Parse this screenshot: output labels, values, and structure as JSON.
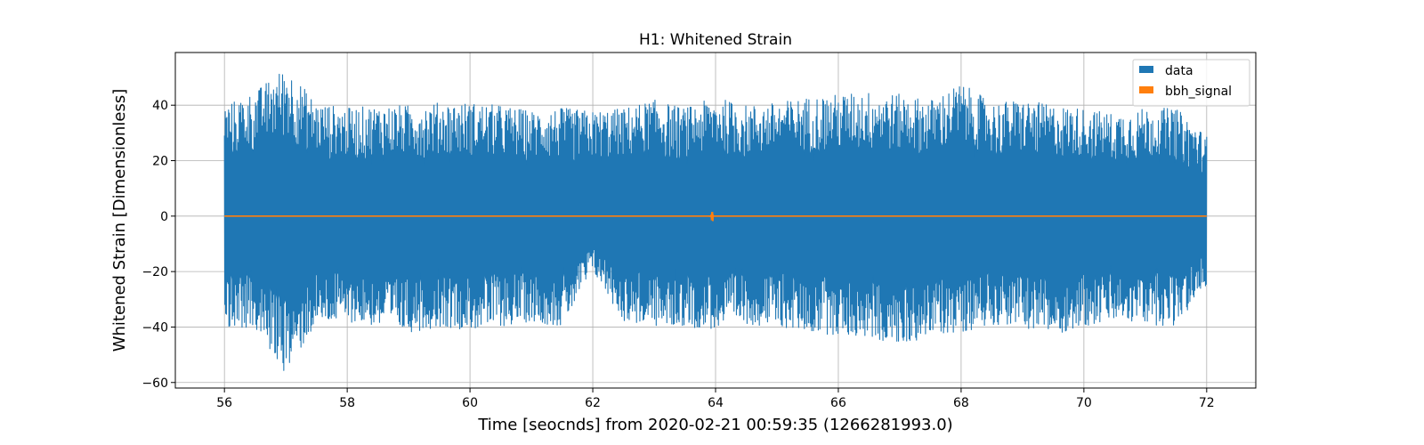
{
  "chart_data": {
    "type": "line",
    "title": "H1: Whitened Strain",
    "xlabel": "Time [seocnds] from 2020-02-21 00:59:35 (1266281993.0)",
    "ylabel": "Whitened Strain [Dimensionless]",
    "xlim": [
      55.2,
      72.8
    ],
    "ylim": [
      -62,
      59
    ],
    "xticks": [
      56,
      58,
      60,
      62,
      64,
      66,
      68,
      70,
      72
    ],
    "xtick_labels": [
      "56",
      "58",
      "60",
      "62",
      "64",
      "66",
      "68",
      "70",
      "72"
    ],
    "yticks": [
      -60,
      -40,
      -20,
      0,
      20,
      40
    ],
    "ytick_labels": [
      "−60",
      "−40",
      "−20",
      "0",
      "20",
      "40"
    ],
    "grid": true,
    "legend_position": "top-right",
    "series": [
      {
        "name": "data",
        "color": "#1f77b4",
        "x_range": [
          56,
          72
        ],
        "envelope_x": [
          56.0,
          56.5,
          57.0,
          57.5,
          58.0,
          58.5,
          59.0,
          59.5,
          60.0,
          60.5,
          61.0,
          61.5,
          62.0,
          62.5,
          63.0,
          63.5,
          64.0,
          64.5,
          65.0,
          65.5,
          66.0,
          66.5,
          67.0,
          67.5,
          68.0,
          68.5,
          69.0,
          69.5,
          70.0,
          70.5,
          71.0,
          71.5,
          72.0
        ],
        "envelope_max": [
          40,
          45,
          54,
          41,
          39,
          40,
          40,
          41,
          41,
          40,
          38,
          39,
          38,
          39,
          42,
          39,
          43,
          40,
          41,
          43,
          44,
          45,
          44,
          42,
          48,
          41,
          42,
          40,
          39,
          37,
          39,
          39,
          29
        ],
        "envelope_min": [
          -40,
          -41,
          -57,
          -39,
          -38,
          -40,
          -42,
          -40,
          -41,
          -40,
          -38,
          -40,
          -20,
          -38,
          -40,
          -40,
          -41,
          -39,
          -40,
          -42,
          -43,
          -44,
          -47,
          -43,
          -42,
          -39,
          -40,
          -43,
          -40,
          -38,
          -39,
          -40,
          -25
        ]
      },
      {
        "name": "bbh_signal",
        "color": "#ff7f0e",
        "x_range": [
          56,
          72
        ],
        "constant_y": 0,
        "burst": {
          "x": 63.95,
          "ymin": -2,
          "ymax": 2
        }
      }
    ]
  }
}
